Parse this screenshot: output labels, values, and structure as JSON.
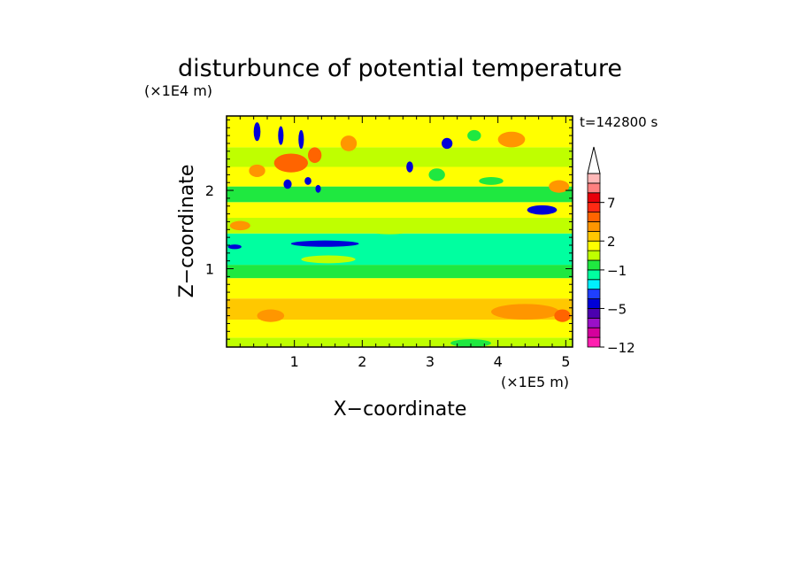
{
  "chart_data": {
    "type": "heatmap",
    "title": "disturbunce of potential temperature",
    "time_label": "t=142800 s",
    "xlabel": "X−coordinate",
    "ylabel": "Z−coordinate",
    "x_unit": "(×1E5 m)",
    "y_unit": "(×1E4 m)",
    "xlim": [
      0,
      5.1
    ],
    "ylim": [
      0,
      2.95
    ],
    "x_ticks": [
      1,
      2,
      3,
      4,
      5
    ],
    "x_tick_labels": [
      "1",
      "2",
      "3",
      "4",
      "5"
    ],
    "y_ticks": [
      1,
      2
    ],
    "y_tick_labels": [
      "1",
      "2"
    ],
    "colorbar": {
      "levels": [
        -12,
        -10,
        -8,
        -6,
        -5,
        -4,
        -3,
        -2,
        -1,
        0,
        1,
        2,
        3,
        5,
        6,
        7,
        8,
        9,
        10
      ],
      "colors": [
        "#ff1fb0",
        "#d4009c",
        "#9a10c8",
        "#4b00b0",
        "#0000d8",
        "#1f3fff",
        "#00f0ff",
        "#00ffa0",
        "#1fe840",
        "#bfff00",
        "#ffff00",
        "#ffc800",
        "#ff9600",
        "#ff6400",
        "#ff2a14",
        "#e8000a",
        "#ff8080",
        "#ffb8b8"
      ],
      "extend": "max",
      "tick_values": [
        7,
        2,
        -1,
        -5,
        -12
      ],
      "tick_labels": [
        "7",
        "2",
        "−1",
        "−5",
        "−12"
      ]
    },
    "z_bands": [
      {
        "z_min": 0.0,
        "z_max": 0.12,
        "value": 0.5
      },
      {
        "z_min": 0.12,
        "z_max": 0.35,
        "value": 1.6
      },
      {
        "z_min": 0.35,
        "z_max": 0.62,
        "value": 2.5
      },
      {
        "z_min": 0.62,
        "z_max": 0.88,
        "value": 1.5
      },
      {
        "z_min": 0.88,
        "z_max": 1.05,
        "value": -0.5
      },
      {
        "z_min": 1.05,
        "z_max": 1.45,
        "value": -1.6
      },
      {
        "z_min": 1.45,
        "z_max": 1.65,
        "value": 0.5
      },
      {
        "z_min": 1.65,
        "z_max": 1.85,
        "value": 1.5
      },
      {
        "z_min": 1.85,
        "z_max": 2.05,
        "value": -0.4
      },
      {
        "z_min": 2.05,
        "z_max": 2.3,
        "value": 1.4
      },
      {
        "z_min": 2.3,
        "z_max": 2.55,
        "value": 0.6
      },
      {
        "z_min": 2.55,
        "z_max": 2.95,
        "value": 1.6
      }
    ],
    "features": [
      {
        "x": 1.45,
        "z": 1.32,
        "rx": 0.5,
        "rz": 0.04,
        "value": -4.5
      },
      {
        "x": 0.12,
        "z": 1.28,
        "rx": 0.1,
        "rz": 0.03,
        "value": -4.5
      },
      {
        "x": 4.65,
        "z": 1.75,
        "rx": 0.22,
        "rz": 0.06,
        "value": -4.5
      },
      {
        "x": 3.9,
        "z": 2.12,
        "rx": 0.18,
        "rz": 0.05,
        "value": -0.5
      },
      {
        "x": 0.45,
        "z": 2.25,
        "rx": 0.12,
        "rz": 0.08,
        "value": 3.5
      },
      {
        "x": 0.95,
        "z": 2.35,
        "rx": 0.25,
        "rz": 0.12,
        "value": 5.5
      },
      {
        "x": 1.3,
        "z": 2.45,
        "rx": 0.1,
        "rz": 0.1,
        "value": 5.5
      },
      {
        "x": 1.8,
        "z": 2.6,
        "rx": 0.12,
        "rz": 0.1,
        "value": 3.5
      },
      {
        "x": 4.2,
        "z": 2.65,
        "rx": 0.2,
        "rz": 0.1,
        "value": 3.5
      },
      {
        "x": 4.9,
        "z": 2.05,
        "rx": 0.15,
        "rz": 0.08,
        "value": 3.5
      },
      {
        "x": 0.2,
        "z": 1.55,
        "rx": 0.15,
        "rz": 0.06,
        "value": 3.5
      },
      {
        "x": 0.45,
        "z": 2.75,
        "rx": 0.05,
        "rz": 0.12,
        "value": -4.5
      },
      {
        "x": 0.8,
        "z": 2.7,
        "rx": 0.04,
        "rz": 0.12,
        "value": -4.5
      },
      {
        "x": 1.1,
        "z": 2.65,
        "rx": 0.04,
        "rz": 0.12,
        "value": -4.5
      },
      {
        "x": 0.9,
        "z": 2.08,
        "rx": 0.06,
        "rz": 0.06,
        "value": -4.5
      },
      {
        "x": 1.2,
        "z": 2.12,
        "rx": 0.05,
        "rz": 0.05,
        "value": -4.5
      },
      {
        "x": 1.35,
        "z": 2.02,
        "rx": 0.04,
        "rz": 0.05,
        "value": -4.5
      },
      {
        "x": 2.7,
        "z": 2.3,
        "rx": 0.05,
        "rz": 0.07,
        "value": -4.5
      },
      {
        "x": 3.25,
        "z": 2.6,
        "rx": 0.08,
        "rz": 0.07,
        "value": -4.5
      },
      {
        "x": 3.65,
        "z": 2.7,
        "rx": 0.1,
        "rz": 0.07,
        "value": -0.5
      },
      {
        "x": 3.1,
        "z": 2.2,
        "rx": 0.12,
        "rz": 0.08,
        "value": -0.5
      },
      {
        "x": 0.65,
        "z": 0.4,
        "rx": 0.2,
        "rz": 0.08,
        "value": 3.5
      },
      {
        "x": 4.4,
        "z": 0.45,
        "rx": 0.5,
        "rz": 0.1,
        "value": 3.5
      },
      {
        "x": 4.95,
        "z": 0.4,
        "rx": 0.12,
        "rz": 0.08,
        "value": 5.5
      },
      {
        "x": 3.6,
        "z": 0.05,
        "rx": 0.3,
        "rz": 0.05,
        "value": -0.5
      },
      {
        "x": 1.5,
        "z": 1.12,
        "rx": 0.4,
        "rz": 0.05,
        "value": 0.5
      },
      {
        "x": 2.4,
        "z": 1.5,
        "rx": 0.35,
        "rz": 0.06,
        "value": 0.5
      }
    ]
  }
}
